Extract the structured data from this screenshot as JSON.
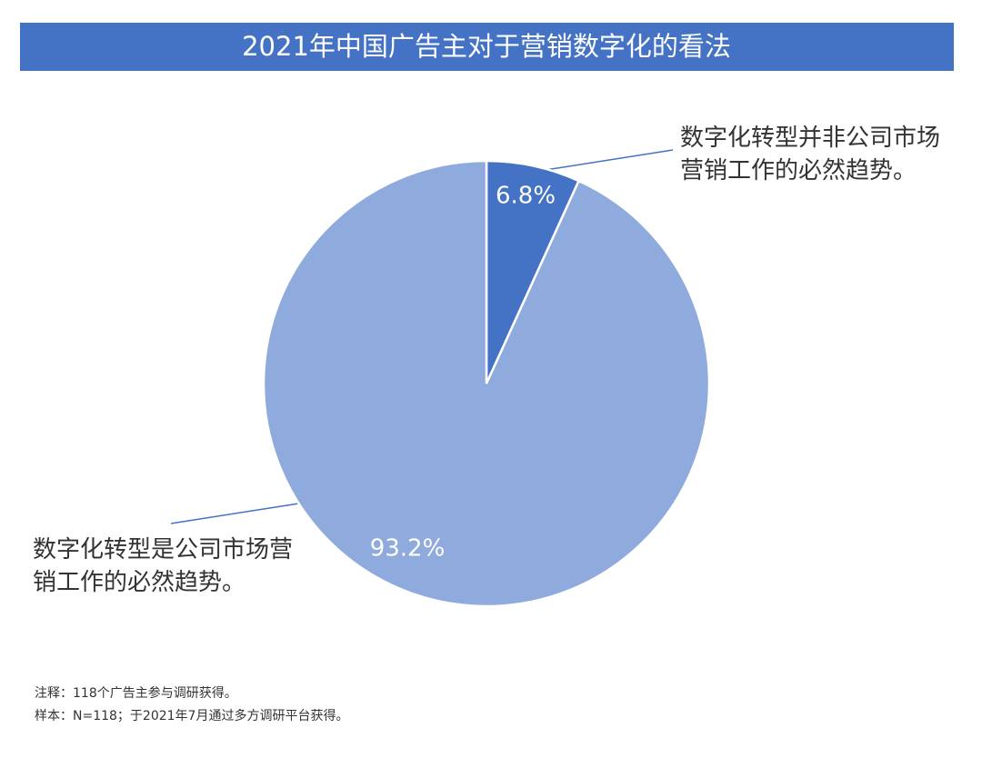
{
  "chart_data": {
    "type": "pie",
    "title": "2021年中国广告主对于营销数字化的看法",
    "categories": [
      "数字化转型并非公司市场营销工作的必然趋势。",
      "数字化转型是公司市场营销工作的必然趋势。"
    ],
    "values": [
      6.8,
      93.2
    ],
    "value_labels": [
      "6.8%",
      "93.2%"
    ],
    "colors": [
      "#4472c4",
      "#8faadc"
    ],
    "notes": [
      "注释：118个广告主参与调研获得。",
      "样本：N=118；于2021年7月通过多方调研平台获得。"
    ]
  }
}
